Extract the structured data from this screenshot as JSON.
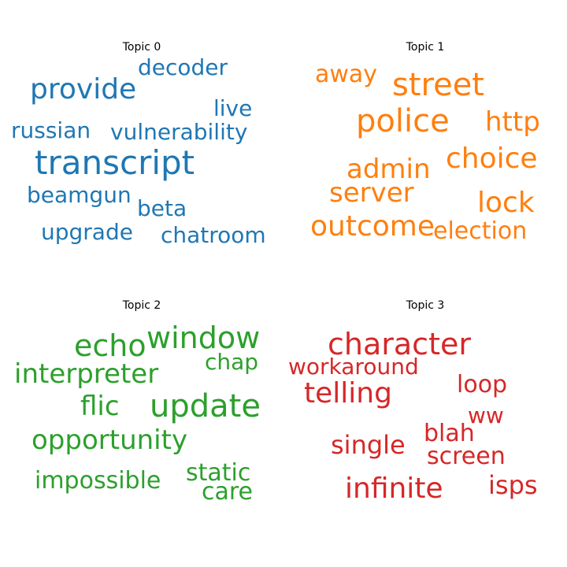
{
  "topics": [
    {
      "title": "Topic 0",
      "color": "#1f77b4",
      "words": [
        "provide",
        "decoder",
        "live",
        "russian",
        "vulnerability",
        "transcript",
        "beamgun",
        "beta",
        "upgrade",
        "chatroom"
      ]
    },
    {
      "title": "Topic 1",
      "color": "#ff7f0e",
      "words": [
        "away",
        "street",
        "police",
        "http",
        "admin",
        "choice",
        "server",
        "lock",
        "outcome",
        "election"
      ]
    },
    {
      "title": "Topic 2",
      "color": "#2ca02c",
      "words": [
        "echo",
        "window",
        "chap",
        "interpreter",
        "flic",
        "update",
        "opportunity",
        "impossible",
        "static",
        "care"
      ]
    },
    {
      "title": "Topic 3",
      "color": "#d62728",
      "words": [
        "character",
        "workaround",
        "telling",
        "loop",
        "ww",
        "single",
        "blah",
        "screen",
        "infinite",
        "isps"
      ]
    }
  ]
}
